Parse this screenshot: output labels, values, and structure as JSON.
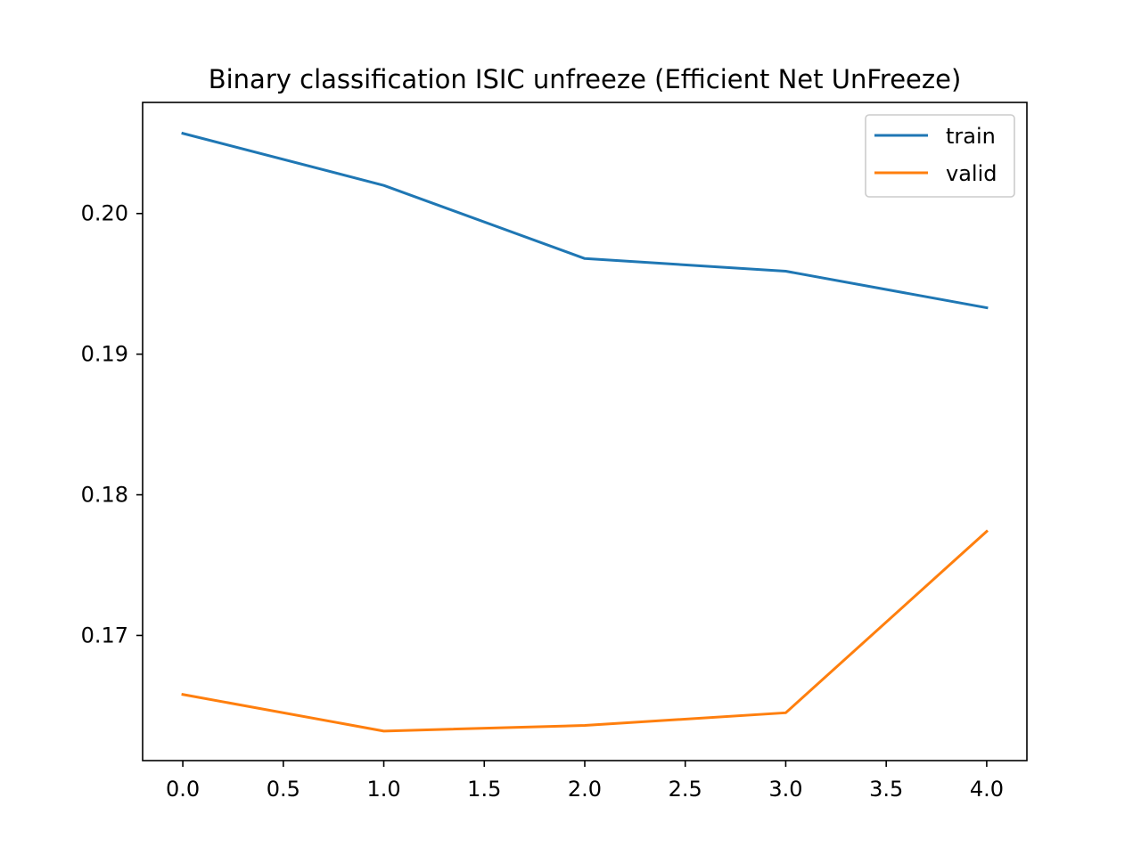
{
  "chart_data": {
    "type": "line",
    "title": "Binary classification ISIC unfreeze (Efficient Net UnFreeze)",
    "xlabel": "",
    "ylabel": "",
    "x": [
      0,
      1,
      2,
      3,
      4
    ],
    "series": [
      {
        "name": "train",
        "color": "#1f77b4",
        "values": [
          0.2057,
          0.202,
          0.1968,
          0.1959,
          0.1933
        ]
      },
      {
        "name": "valid",
        "color": "#ff7f0e",
        "values": [
          0.1658,
          0.1632,
          0.1636,
          0.1645,
          0.1774
        ]
      }
    ],
    "xlim": [
      -0.2,
      4.2
    ],
    "ylim": [
      0.1611,
      0.2079
    ],
    "xticks": [
      0.0,
      0.5,
      1.0,
      1.5,
      2.0,
      2.5,
      3.0,
      3.5,
      4.0
    ],
    "xtick_labels": [
      "0.0",
      "0.5",
      "1.0",
      "1.5",
      "2.0",
      "2.5",
      "3.0",
      "3.5",
      "4.0"
    ],
    "yticks": [
      0.17,
      0.18,
      0.19,
      0.2
    ],
    "ytick_labels": [
      "0.17",
      "0.18",
      "0.19",
      "0.20"
    ],
    "grid": false,
    "legend_position": "upper right"
  }
}
